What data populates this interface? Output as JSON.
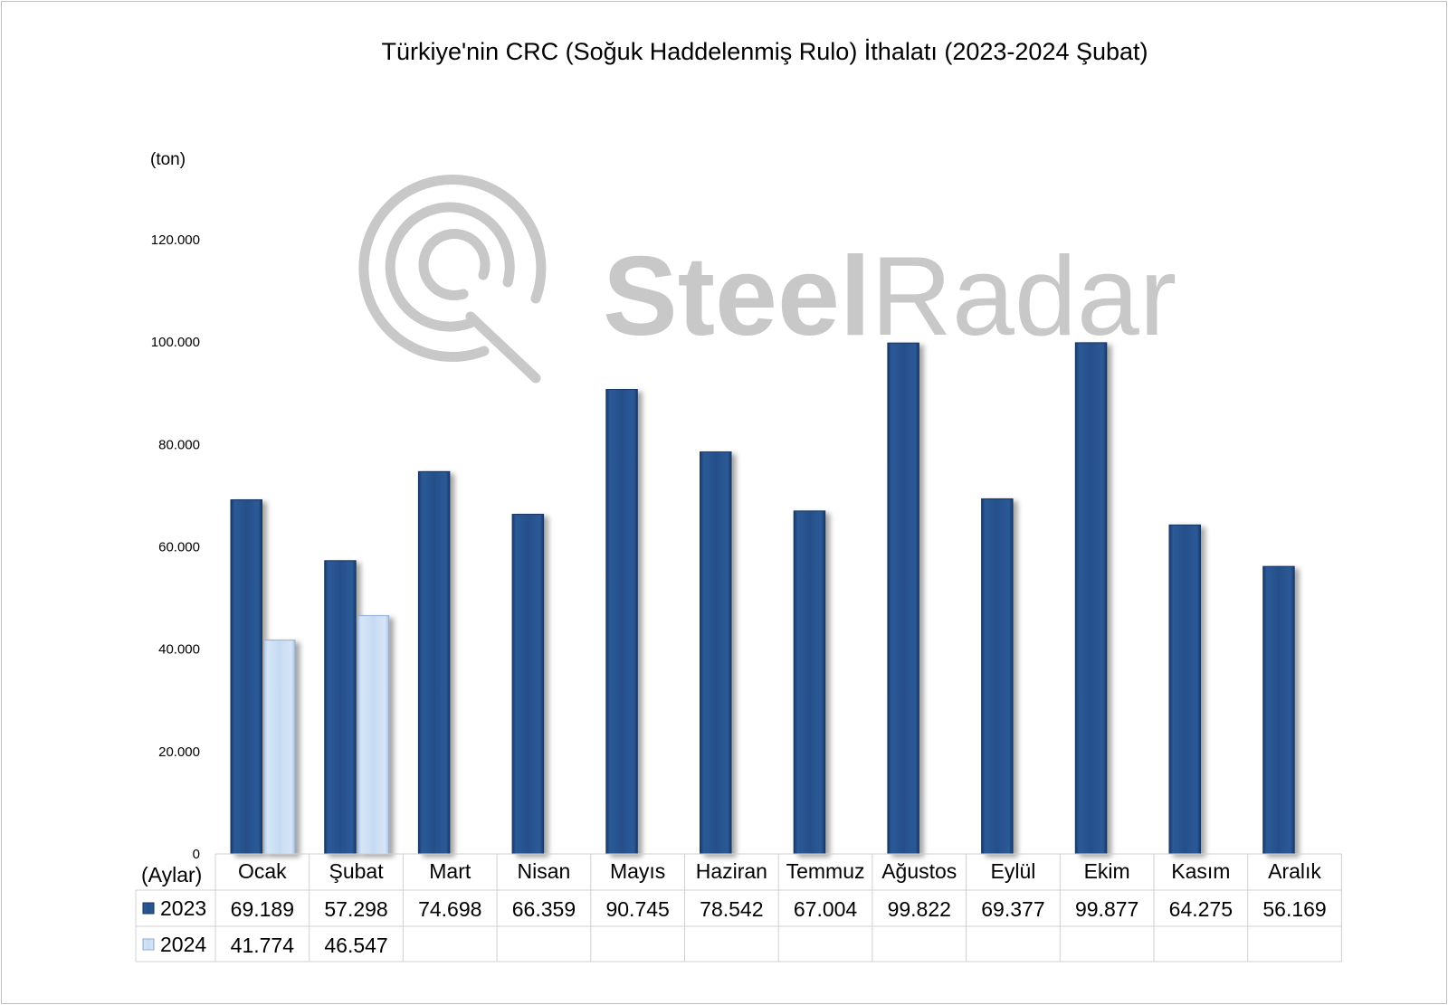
{
  "chart_data": {
    "type": "bar",
    "title": "Türkiye'nin CRC (Soğuk Haddelenmiş Rulo) İthalatı (2023-2024 Şubat)",
    "ylabel": "(ton)",
    "xlabel": "(Aylar)",
    "categories": [
      "Ocak",
      "Şubat",
      "Mart",
      "Nisan",
      "Mayıs",
      "Haziran",
      "Temmuz",
      "Ağustos",
      "Eylül",
      "Ekim",
      "Kasım",
      "Aralık"
    ],
    "series": [
      {
        "name": "2023",
        "color": "#254f8a",
        "values": [
          69189,
          57298,
          74698,
          66359,
          90745,
          78542,
          67004,
          99822,
          69377,
          99877,
          64275,
          56169
        ],
        "labels": [
          "69.189",
          "57.298",
          "74.698",
          "66.359",
          "90.745",
          "78.542",
          "67.004",
          "99.822",
          "69.377",
          "99.877",
          "64.275",
          "56.169"
        ]
      },
      {
        "name": "2024",
        "color": "#c6dbf3",
        "values": [
          41774,
          46547,
          null,
          null,
          null,
          null,
          null,
          null,
          null,
          null,
          null,
          null
        ],
        "labels": [
          "41.774",
          "46.547",
          "",
          "",
          "",
          "",
          "",
          "",
          "",
          "",
          "",
          ""
        ]
      }
    ],
    "ylim": [
      0,
      120000
    ],
    "yticks": [
      0,
      20000,
      40000,
      60000,
      80000,
      100000,
      120000
    ],
    "ytick_labels": [
      "0",
      "20.000",
      "40.000",
      "60.000",
      "80.000",
      "100.000",
      "120.000"
    ],
    "grid": false,
    "legend": "data-table"
  },
  "watermark": {
    "text_bold": "Steel",
    "text_light": "Radar",
    "color": "#c8c8c8"
  }
}
